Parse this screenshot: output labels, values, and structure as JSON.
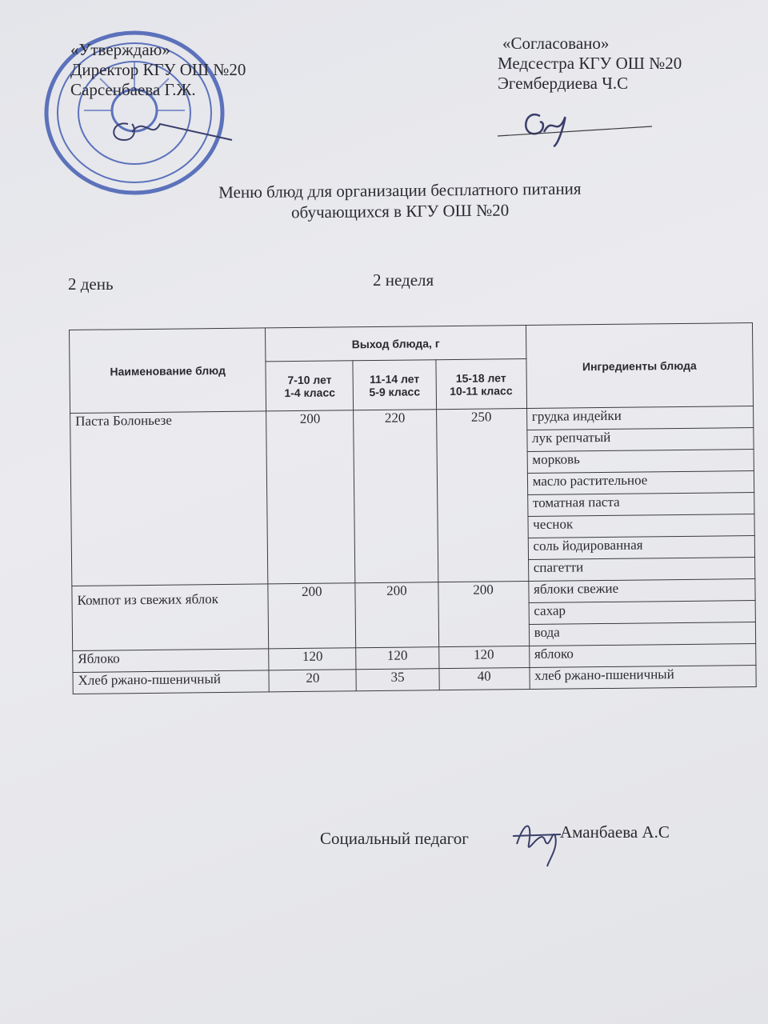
{
  "approval": {
    "quote": "«Утверждаю»",
    "position": "Директор КГУ ОШ №20",
    "name": "Сарсенбаева Г.Ж."
  },
  "agreement": {
    "quote": "«Согласовано»",
    "position": "Медсестра КГУ ОШ №20",
    "name": "Эгембердиева Ч.С"
  },
  "title_line1": "Меню блюд для организации бесплатного питания",
  "title_line2": "обучающихся в КГУ ОШ №20",
  "day": "2 день",
  "week": "2 неделя",
  "table": {
    "col_name": "Наименование блюд",
    "col_yield": "Выход блюда, г",
    "age_groups": [
      {
        "age": "7-10 лет",
        "grade": "1-4 класс"
      },
      {
        "age": "11-14 лет",
        "grade": "5-9 класс"
      },
      {
        "age": "15-18 лет",
        "grade": "10-11 класс"
      }
    ],
    "col_ingredients": "Ингредиенты блюда",
    "dishes": [
      {
        "name": "Паста Болоньезе",
        "yields": [
          "200",
          "220",
          "250"
        ],
        "ingredients": [
          "грудка индейки",
          "лук репчатый",
          "морковь",
          "масло растительное",
          "томатная паста",
          "чеснок",
          "соль йодированная",
          "спагетти"
        ]
      },
      {
        "name": "Компот из свежих яблок",
        "yields": [
          "200",
          "200",
          "200"
        ],
        "ingredients": [
          "яблоки свежие",
          "сахар",
          "вода"
        ]
      },
      {
        "name": "Яблоко",
        "yields": [
          "120",
          "120",
          "120"
        ],
        "ingredients": [
          "яблоко"
        ]
      },
      {
        "name": "Хлеб ржано-пшеничный",
        "yields": [
          "20",
          "35",
          "40"
        ],
        "ingredients": [
          "хлеб ржано-пшеничный"
        ]
      }
    ]
  },
  "footer": {
    "position": "Социальный педагог",
    "name": "Аманбаева А.С"
  },
  "stamp_color": "#3a55b0"
}
